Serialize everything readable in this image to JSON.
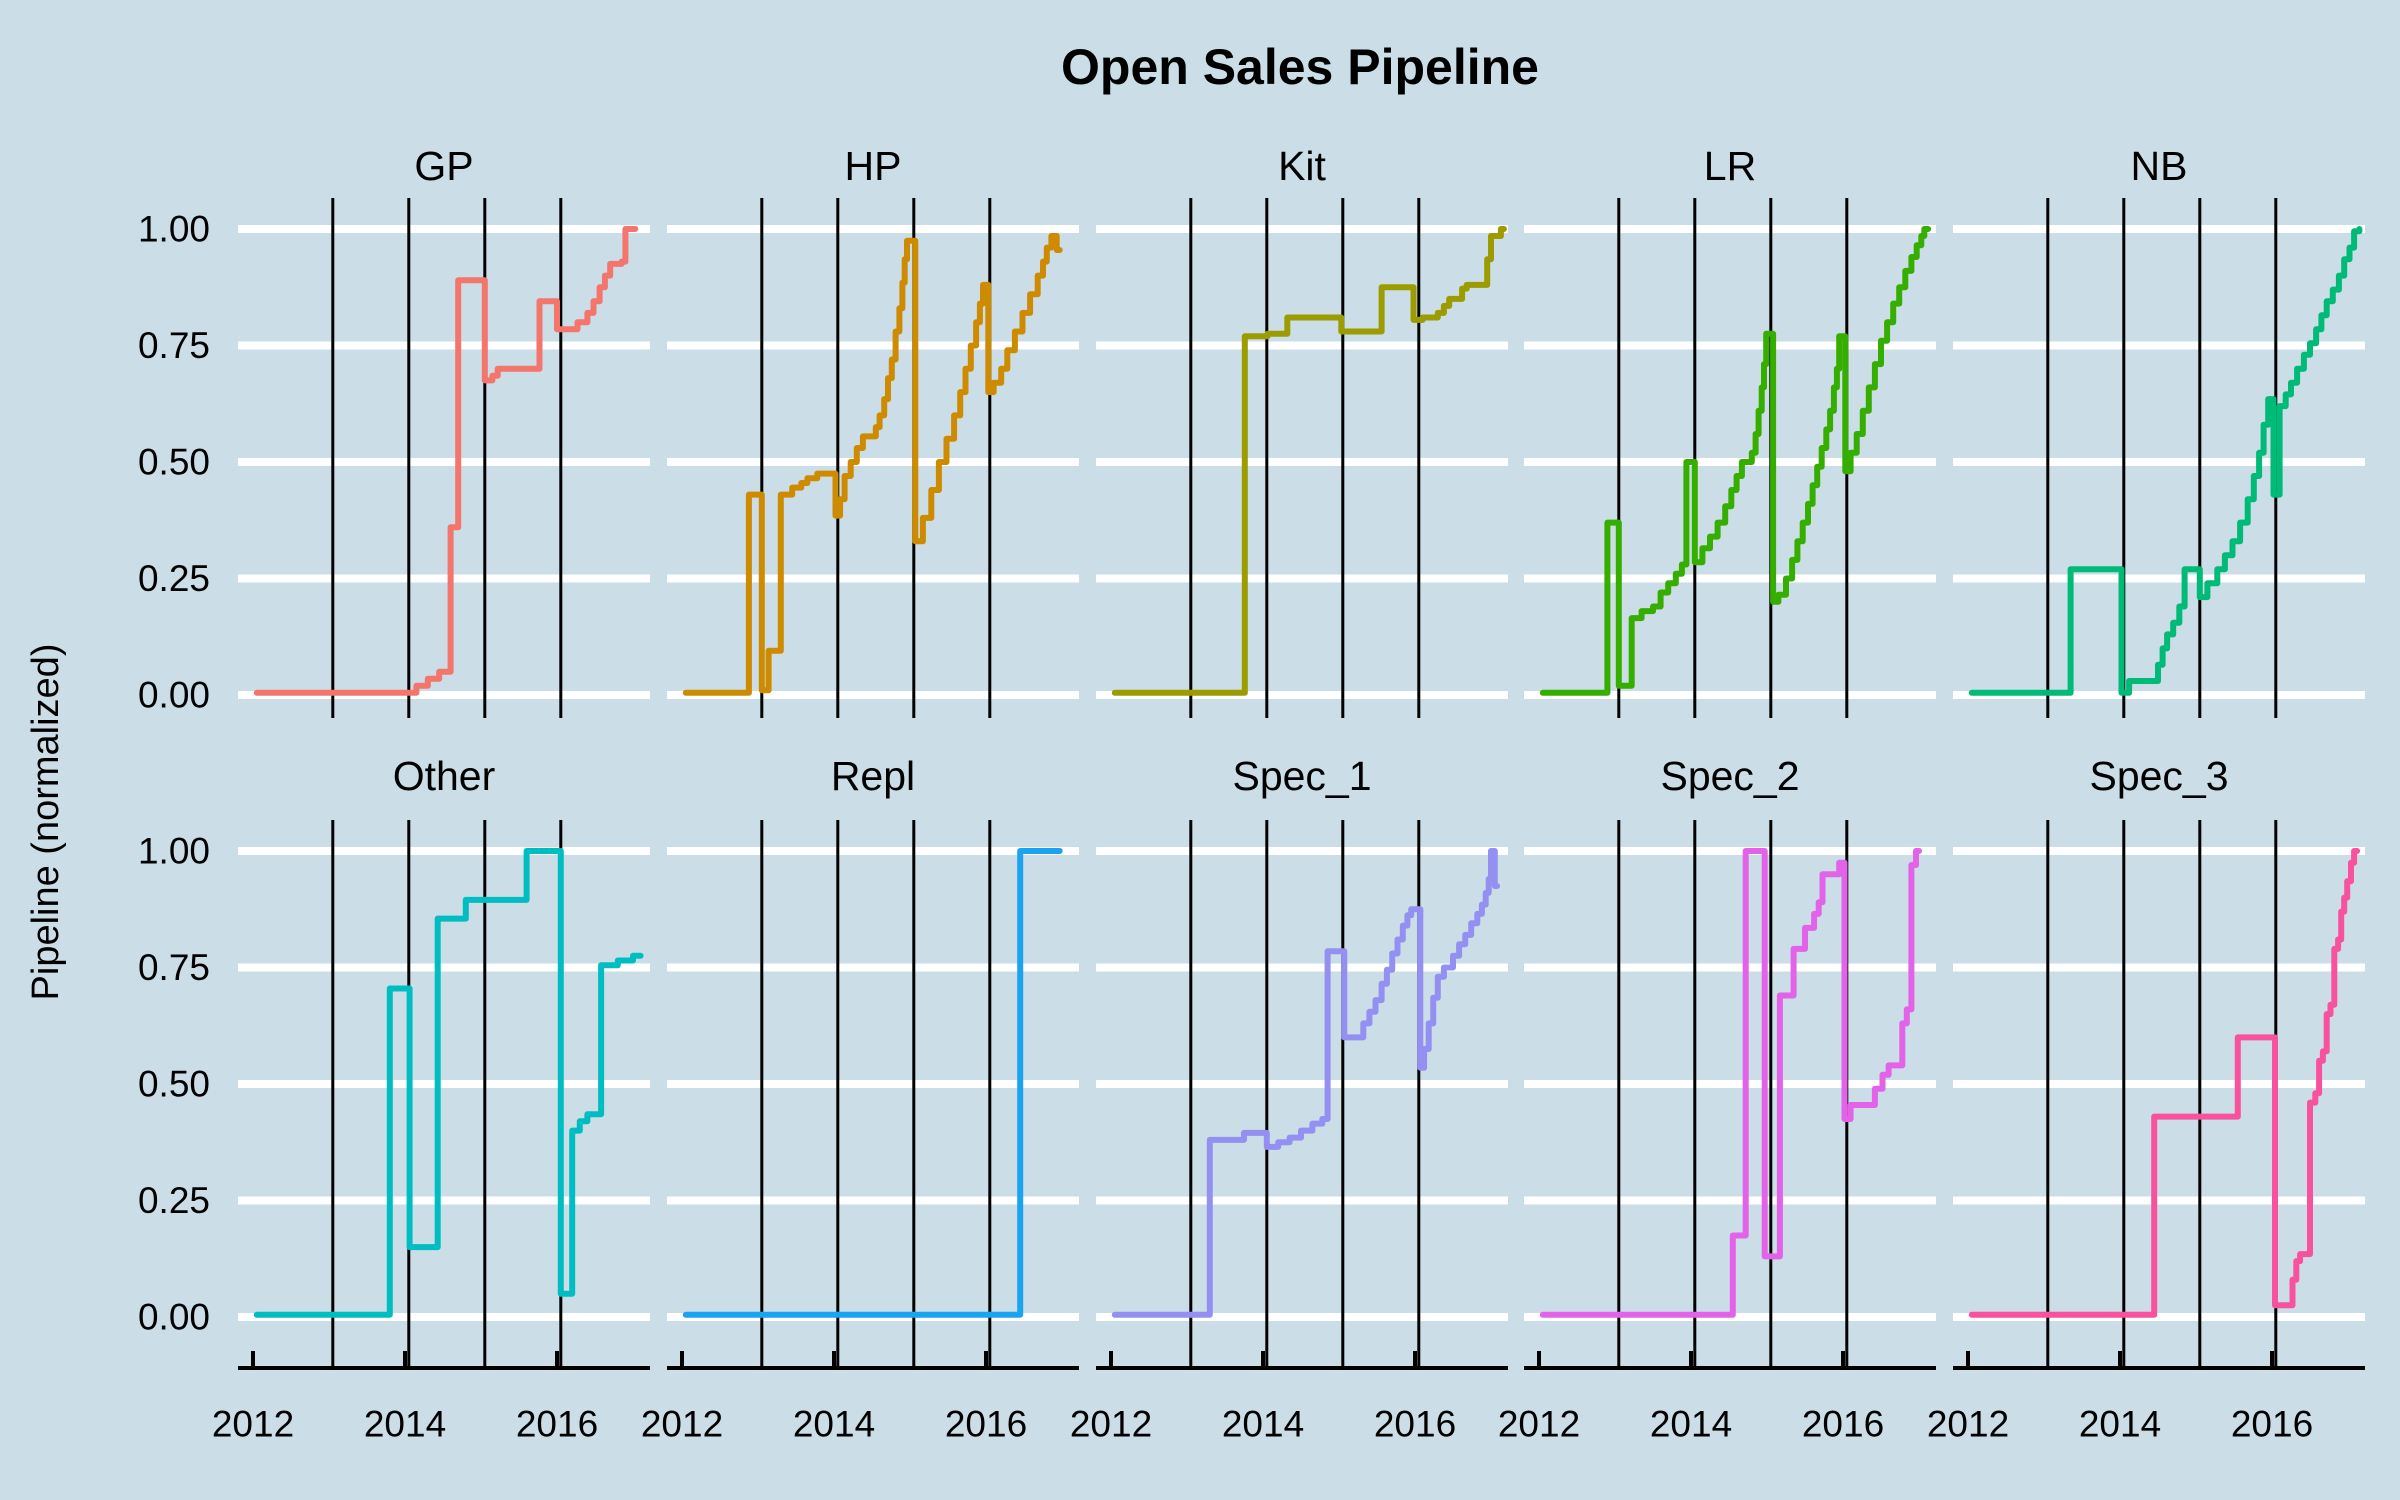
{
  "chart_data": {
    "type": "line",
    "subtype": "step",
    "title": "Open Sales Pipeline",
    "ylabel": "Pipeline (normalized)",
    "xlabel": "",
    "x_range": [
      2011.8,
      2017.25
    ],
    "y_range": [
      0,
      1
    ],
    "x_ticks": [
      {
        "label": "2012",
        "value": 2012
      },
      {
        "label": "2014",
        "value": 2014
      },
      {
        "label": "2016",
        "value": 2016
      }
    ],
    "y_ticks": [
      {
        "label": "0.00",
        "value": 0
      },
      {
        "label": "0.25",
        "value": 0.25
      },
      {
        "label": "0.50",
        "value": 0.5
      },
      {
        "label": "0.75",
        "value": 0.75
      },
      {
        "label": "1.00",
        "value": 1
      }
    ],
    "guide_years": [
      2013.05,
      2014.05,
      2015.05,
      2016.05
    ],
    "grid": "white horizontal gridlines at y ticks; black vertical year guides",
    "grid_color": "#FFFFFF",
    "guide_color": "#000000",
    "background": "#CBDEE7",
    "legend": "none",
    "facet_rows": [
      [
        "GP",
        "HP",
        "Kit",
        "LR",
        "NB"
      ],
      [
        "Other",
        "Repl",
        "Spec_1",
        "Spec_2",
        "Spec_3"
      ]
    ],
    "facets": [
      {
        "label": "GP",
        "color": "#F3756C",
        "steps": [
          [
            2012.05,
            0.005
          ],
          [
            2014.15,
            0.02
          ],
          [
            2014.3,
            0.035
          ],
          [
            2014.45,
            0.05
          ],
          [
            2014.6,
            0.36
          ],
          [
            2014.7,
            0.89
          ],
          [
            2015.05,
            0.675
          ],
          [
            2015.15,
            0.685
          ],
          [
            2015.22,
            0.7
          ],
          [
            2015.77,
            0.845
          ],
          [
            2016.0,
            0.785
          ],
          [
            2016.27,
            0.8
          ],
          [
            2016.4,
            0.82
          ],
          [
            2016.48,
            0.845
          ],
          [
            2016.56,
            0.875
          ],
          [
            2016.63,
            0.9
          ],
          [
            2016.7,
            0.925
          ],
          [
            2016.85,
            0.93
          ],
          [
            2016.9,
            1.0
          ],
          [
            2017.03,
            1.0
          ]
        ]
      },
      {
        "label": "HP",
        "color": "#CE8B00",
        "steps": [
          [
            2012.05,
            0.005
          ],
          [
            2012.88,
            0.43
          ],
          [
            2013.05,
            0.01
          ],
          [
            2013.14,
            0.095
          ],
          [
            2013.3,
            0.43
          ],
          [
            2013.45,
            0.445
          ],
          [
            2013.57,
            0.455
          ],
          [
            2013.65,
            0.465
          ],
          [
            2013.78,
            0.475
          ],
          [
            2014.02,
            0.385
          ],
          [
            2014.08,
            0.42
          ],
          [
            2014.14,
            0.47
          ],
          [
            2014.22,
            0.5
          ],
          [
            2014.3,
            0.53
          ],
          [
            2014.38,
            0.555
          ],
          [
            2014.55,
            0.575
          ],
          [
            2014.6,
            0.6
          ],
          [
            2014.66,
            0.635
          ],
          [
            2014.71,
            0.68
          ],
          [
            2014.76,
            0.72
          ],
          [
            2014.81,
            0.78
          ],
          [
            2014.86,
            0.83
          ],
          [
            2014.9,
            0.885
          ],
          [
            2014.93,
            0.935
          ],
          [
            2014.96,
            0.975
          ],
          [
            2015.07,
            0.33
          ],
          [
            2015.17,
            0.38
          ],
          [
            2015.28,
            0.44
          ],
          [
            2015.38,
            0.5
          ],
          [
            2015.48,
            0.55
          ],
          [
            2015.58,
            0.6
          ],
          [
            2015.66,
            0.65
          ],
          [
            2015.73,
            0.7
          ],
          [
            2015.8,
            0.75
          ],
          [
            2015.87,
            0.8
          ],
          [
            2015.92,
            0.84
          ],
          [
            2015.96,
            0.88
          ],
          [
            2016.03,
            0.65
          ],
          [
            2016.1,
            0.67
          ],
          [
            2016.2,
            0.7
          ],
          [
            2016.28,
            0.74
          ],
          [
            2016.38,
            0.78
          ],
          [
            2016.48,
            0.82
          ],
          [
            2016.58,
            0.86
          ],
          [
            2016.68,
            0.9
          ],
          [
            2016.75,
            0.93
          ],
          [
            2016.8,
            0.96
          ],
          [
            2016.86,
            0.985
          ],
          [
            2016.93,
            0.955
          ],
          [
            2016.97,
            0.955
          ]
        ]
      },
      {
        "label": "Kit",
        "color": "#9C9B00",
        "steps": [
          [
            2012.05,
            0.005
          ],
          [
            2013.76,
            0.77
          ],
          [
            2014.06,
            0.775
          ],
          [
            2014.32,
            0.81
          ],
          [
            2015.03,
            0.78
          ],
          [
            2015.56,
            0.875
          ],
          [
            2015.98,
            0.805
          ],
          [
            2016.1,
            0.81
          ],
          [
            2016.3,
            0.82
          ],
          [
            2016.38,
            0.835
          ],
          [
            2016.45,
            0.85
          ],
          [
            2016.62,
            0.872
          ],
          [
            2016.68,
            0.88
          ],
          [
            2016.95,
            0.935
          ],
          [
            2017.0,
            0.985
          ],
          [
            2017.13,
            1.0
          ],
          [
            2017.17,
            1.0
          ]
        ]
      },
      {
        "label": "LR",
        "color": "#35AE00",
        "steps": [
          [
            2012.05,
            0.005
          ],
          [
            2012.9,
            0.37
          ],
          [
            2013.05,
            0.02
          ],
          [
            2013.22,
            0.165
          ],
          [
            2013.35,
            0.18
          ],
          [
            2013.5,
            0.19
          ],
          [
            2013.6,
            0.22
          ],
          [
            2013.7,
            0.24
          ],
          [
            2013.8,
            0.26
          ],
          [
            2013.88,
            0.28
          ],
          [
            2013.94,
            0.5
          ],
          [
            2014.05,
            0.285
          ],
          [
            2014.15,
            0.315
          ],
          [
            2014.25,
            0.34
          ],
          [
            2014.35,
            0.37
          ],
          [
            2014.45,
            0.405
          ],
          [
            2014.53,
            0.44
          ],
          [
            2014.6,
            0.47
          ],
          [
            2014.67,
            0.5
          ],
          [
            2014.8,
            0.52
          ],
          [
            2014.85,
            0.56
          ],
          [
            2014.89,
            0.61
          ],
          [
            2014.93,
            0.66
          ],
          [
            2014.96,
            0.71
          ],
          [
            2014.99,
            0.775
          ],
          [
            2015.08,
            0.2
          ],
          [
            2015.15,
            0.215
          ],
          [
            2015.25,
            0.25
          ],
          [
            2015.33,
            0.29
          ],
          [
            2015.4,
            0.33
          ],
          [
            2015.47,
            0.37
          ],
          [
            2015.54,
            0.41
          ],
          [
            2015.6,
            0.45
          ],
          [
            2015.66,
            0.49
          ],
          [
            2015.72,
            0.53
          ],
          [
            2015.78,
            0.57
          ],
          [
            2015.83,
            0.61
          ],
          [
            2015.88,
            0.66
          ],
          [
            2015.92,
            0.7
          ],
          [
            2015.95,
            0.77
          ],
          [
            2016.03,
            0.48
          ],
          [
            2016.1,
            0.52
          ],
          [
            2016.18,
            0.56
          ],
          [
            2016.26,
            0.61
          ],
          [
            2016.34,
            0.66
          ],
          [
            2016.42,
            0.71
          ],
          [
            2016.5,
            0.76
          ],
          [
            2016.58,
            0.8
          ],
          [
            2016.66,
            0.84
          ],
          [
            2016.74,
            0.875
          ],
          [
            2016.82,
            0.91
          ],
          [
            2016.9,
            0.94
          ],
          [
            2016.97,
            0.965
          ],
          [
            2017.03,
            0.985
          ],
          [
            2017.07,
            1.0
          ],
          [
            2017.12,
            1.0
          ]
        ]
      },
      {
        "label": "NB",
        "color": "#00BA78",
        "steps": [
          [
            2012.05,
            0.005
          ],
          [
            2013.35,
            0.27
          ],
          [
            2014.02,
            0.005
          ],
          [
            2014.12,
            0.03
          ],
          [
            2014.5,
            0.065
          ],
          [
            2014.56,
            0.1
          ],
          [
            2014.62,
            0.13
          ],
          [
            2014.7,
            0.155
          ],
          [
            2014.78,
            0.19
          ],
          [
            2014.85,
            0.27
          ],
          [
            2015.05,
            0.21
          ],
          [
            2015.15,
            0.24
          ],
          [
            2015.28,
            0.27
          ],
          [
            2015.38,
            0.3
          ],
          [
            2015.48,
            0.33
          ],
          [
            2015.58,
            0.37
          ],
          [
            2015.68,
            0.42
          ],
          [
            2015.76,
            0.47
          ],
          [
            2015.83,
            0.52
          ],
          [
            2015.89,
            0.58
          ],
          [
            2015.95,
            0.635
          ],
          [
            2016.02,
            0.43
          ],
          [
            2016.1,
            0.62
          ],
          [
            2016.18,
            0.645
          ],
          [
            2016.25,
            0.67
          ],
          [
            2016.33,
            0.7
          ],
          [
            2016.42,
            0.73
          ],
          [
            2016.5,
            0.755
          ],
          [
            2016.58,
            0.785
          ],
          [
            2016.65,
            0.815
          ],
          [
            2016.72,
            0.845
          ],
          [
            2016.8,
            0.87
          ],
          [
            2016.88,
            0.9
          ],
          [
            2016.95,
            0.935
          ],
          [
            2017.02,
            0.96
          ],
          [
            2017.08,
            0.995
          ],
          [
            2017.15,
            1.0
          ]
        ]
      },
      {
        "label": "Other",
        "color": "#00BDC2",
        "steps": [
          [
            2012.05,
            0.005
          ],
          [
            2013.8,
            0.705
          ],
          [
            2014.06,
            0.15
          ],
          [
            2014.43,
            0.855
          ],
          [
            2014.8,
            0.895
          ],
          [
            2015.6,
            1.0
          ],
          [
            2016.05,
            0.05
          ],
          [
            2016.2,
            0.4
          ],
          [
            2016.3,
            0.42
          ],
          [
            2016.4,
            0.435
          ],
          [
            2016.58,
            0.755
          ],
          [
            2016.8,
            0.765
          ],
          [
            2017.0,
            0.775
          ],
          [
            2017.1,
            0.775
          ]
        ]
      },
      {
        "label": "Repl",
        "color": "#1BA3F2",
        "steps": [
          [
            2012.05,
            0.005
          ],
          [
            2016.45,
            1.0
          ],
          [
            2016.97,
            1.0
          ]
        ]
      },
      {
        "label": "Spec_1",
        "color": "#9390F2",
        "steps": [
          [
            2012.05,
            0.005
          ],
          [
            2013.3,
            0.38
          ],
          [
            2013.75,
            0.395
          ],
          [
            2014.05,
            0.365
          ],
          [
            2014.2,
            0.375
          ],
          [
            2014.35,
            0.385
          ],
          [
            2014.5,
            0.4
          ],
          [
            2014.65,
            0.415
          ],
          [
            2014.78,
            0.425
          ],
          [
            2014.85,
            0.785
          ],
          [
            2015.07,
            0.6
          ],
          [
            2015.32,
            0.63
          ],
          [
            2015.4,
            0.655
          ],
          [
            2015.48,
            0.68
          ],
          [
            2015.56,
            0.715
          ],
          [
            2015.63,
            0.745
          ],
          [
            2015.7,
            0.78
          ],
          [
            2015.77,
            0.81
          ],
          [
            2015.84,
            0.84
          ],
          [
            2015.9,
            0.862
          ],
          [
            2015.95,
            0.875
          ],
          [
            2016.07,
            0.535
          ],
          [
            2016.12,
            0.575
          ],
          [
            2016.18,
            0.63
          ],
          [
            2016.24,
            0.685
          ],
          [
            2016.3,
            0.73
          ],
          [
            2016.38,
            0.75
          ],
          [
            2016.5,
            0.775
          ],
          [
            2016.58,
            0.8
          ],
          [
            2016.66,
            0.82
          ],
          [
            2016.74,
            0.845
          ],
          [
            2016.82,
            0.865
          ],
          [
            2016.88,
            0.885
          ],
          [
            2016.93,
            0.91
          ],
          [
            2016.97,
            0.94
          ],
          [
            2017.0,
            1.0
          ],
          [
            2017.05,
            0.925
          ],
          [
            2017.08,
            0.925
          ]
        ]
      },
      {
        "label": "Spec_2",
        "color": "#E263E8",
        "steps": [
          [
            2012.05,
            0.005
          ],
          [
            2014.55,
            0.175
          ],
          [
            2014.72,
            1.0
          ],
          [
            2014.97,
            0.13
          ],
          [
            2015.17,
            0.69
          ],
          [
            2015.35,
            0.79
          ],
          [
            2015.5,
            0.835
          ],
          [
            2015.62,
            0.865
          ],
          [
            2015.68,
            0.89
          ],
          [
            2015.73,
            0.95
          ],
          [
            2015.95,
            0.975
          ],
          [
            2016.02,
            0.425
          ],
          [
            2016.1,
            0.455
          ],
          [
            2016.42,
            0.49
          ],
          [
            2016.52,
            0.52
          ],
          [
            2016.6,
            0.54
          ],
          [
            2016.78,
            0.63
          ],
          [
            2016.84,
            0.66
          ],
          [
            2016.9,
            0.97
          ],
          [
            2016.96,
            1.0
          ],
          [
            2017.0,
            1.0
          ]
        ]
      },
      {
        "label": "Spec_3",
        "color": "#F8519E",
        "steps": [
          [
            2012.05,
            0.005
          ],
          [
            2014.45,
            0.43
          ],
          [
            2015.55,
            0.6
          ],
          [
            2016.04,
            0.025
          ],
          [
            2016.27,
            0.08
          ],
          [
            2016.32,
            0.12
          ],
          [
            2016.37,
            0.135
          ],
          [
            2016.5,
            0.46
          ],
          [
            2016.57,
            0.48
          ],
          [
            2016.62,
            0.55
          ],
          [
            2016.67,
            0.57
          ],
          [
            2016.72,
            0.65
          ],
          [
            2016.77,
            0.67
          ],
          [
            2016.82,
            0.79
          ],
          [
            2016.87,
            0.81
          ],
          [
            2016.91,
            0.87
          ],
          [
            2016.95,
            0.9
          ],
          [
            2016.99,
            0.935
          ],
          [
            2017.04,
            0.975
          ],
          [
            2017.08,
            1.0
          ],
          [
            2017.12,
            1.0
          ]
        ]
      }
    ]
  }
}
